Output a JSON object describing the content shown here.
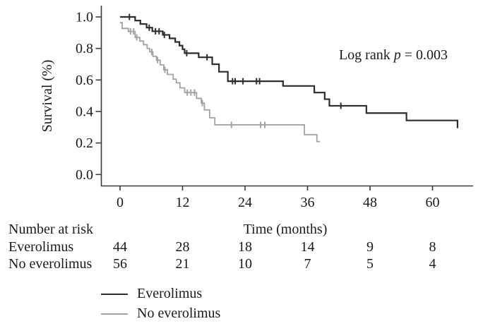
{
  "figure": {
    "background_color": "#ffffff",
    "text_color": "#1a1a1a",
    "axis_color": "#3c3c3c"
  },
  "chart_data": {
    "type": "line",
    "subtype": "kaplan-meier-step",
    "title": "",
    "xlabel": "Time (months)",
    "ylabel": "Survival (%)",
    "xlim": [
      0,
      68
    ],
    "ylim": [
      0.0,
      1.0
    ],
    "xticks": [
      0,
      12,
      24,
      36,
      48,
      60
    ],
    "yticks": [
      0.0,
      0.2,
      0.4,
      0.6,
      0.8,
      1.0
    ],
    "grid": false,
    "legend_position": "bottom-left",
    "annotation": {
      "pre": "Log rank ",
      "italic": "p",
      "post": " = 0.003"
    },
    "series": [
      {
        "name": "Everolimus",
        "color": "#2d2d2d",
        "points": [
          [
            0,
            1.0
          ],
          [
            2.9,
            0.977
          ],
          [
            3.9,
            0.955
          ],
          [
            5.1,
            0.932
          ],
          [
            6.2,
            0.909
          ],
          [
            8.2,
            0.886
          ],
          [
            9.5,
            0.864
          ],
          [
            10.6,
            0.841
          ],
          [
            11.4,
            0.818
          ],
          [
            12.0,
            0.795
          ],
          [
            12.4,
            0.77
          ],
          [
            15.1,
            0.744
          ],
          [
            17.7,
            0.7
          ],
          [
            19.0,
            0.652
          ],
          [
            20.7,
            0.592
          ],
          [
            31.3,
            0.562
          ],
          [
            37.3,
            0.52
          ],
          [
            39.3,
            0.478
          ],
          [
            40.2,
            0.436
          ],
          [
            47.3,
            0.39
          ],
          [
            55.0,
            0.343
          ],
          [
            64.8,
            0.294
          ]
        ],
        "censor_times": [
          1.8,
          5.6,
          6.8,
          7.5,
          8.5,
          12.8,
          16.7,
          21.6,
          22.1,
          23.6,
          26.2,
          26.8,
          42.4
        ]
      },
      {
        "name": "No everolimus",
        "color": "#a2a2a2",
        "points": [
          [
            0,
            0.964
          ],
          [
            0.4,
            0.927
          ],
          [
            1.6,
            0.908
          ],
          [
            2.9,
            0.87
          ],
          [
            3.8,
            0.847
          ],
          [
            4.5,
            0.824
          ],
          [
            5.2,
            0.8
          ],
          [
            5.7,
            0.778
          ],
          [
            6.3,
            0.75
          ],
          [
            7.0,
            0.726
          ],
          [
            7.7,
            0.696
          ],
          [
            8.4,
            0.665
          ],
          [
            9.1,
            0.635
          ],
          [
            10.2,
            0.605
          ],
          [
            10.8,
            0.582
          ],
          [
            11.5,
            0.55
          ],
          [
            12.4,
            0.52
          ],
          [
            14.7,
            0.483
          ],
          [
            15.6,
            0.453
          ],
          [
            16.2,
            0.41
          ],
          [
            17.2,
            0.36
          ],
          [
            18.2,
            0.315
          ],
          [
            35.4,
            0.253
          ],
          [
            37.8,
            0.209
          ],
          [
            38.4,
            0.209
          ]
        ],
        "censor_times": [
          2.0,
          2.6,
          3.2,
          6.1,
          7.2,
          8.6,
          12.9,
          13.6,
          14.3,
          15.8,
          21.4,
          27.0,
          27.8
        ]
      }
    ],
    "risk_table": {
      "title": "Number at risk",
      "times": [
        0,
        12,
        24,
        36,
        48,
        60
      ],
      "rows": [
        {
          "label": "Everolimus",
          "values": [
            44,
            28,
            18,
            14,
            9,
            8
          ]
        },
        {
          "label": "No everolimus",
          "values": [
            56,
            21,
            10,
            7,
            5,
            4
          ]
        }
      ]
    }
  }
}
